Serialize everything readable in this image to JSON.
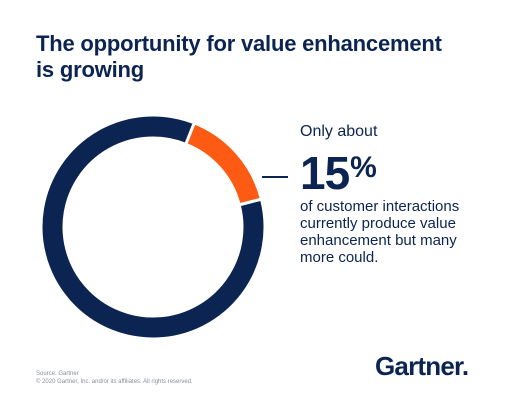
{
  "header": {
    "title_line1": "The opportunity for value enhancement",
    "title_line2": "is growing"
  },
  "callout": {
    "prefix": "Only about",
    "value": "15",
    "unit": "%",
    "description_lines": [
      "of customer interactions",
      "currently produce value",
      "enhancement but many",
      "more could."
    ]
  },
  "footer": {
    "source_line1": "Source: Gartner",
    "source_line2": "© 2020 Gartner, Inc. and/or its affiliates. All rights reserved."
  },
  "logo": {
    "text": "Gartner"
  },
  "colors": {
    "navy": "#0b2451",
    "orange": "#fd5a14",
    "background": "#ffffff"
  },
  "chart_data": {
    "type": "pie",
    "variant": "donut",
    "title": "",
    "slices": [
      {
        "value": 15,
        "color": "#fd5a14"
      },
      {
        "value": 85,
        "color": "#0b2451"
      }
    ]
  }
}
